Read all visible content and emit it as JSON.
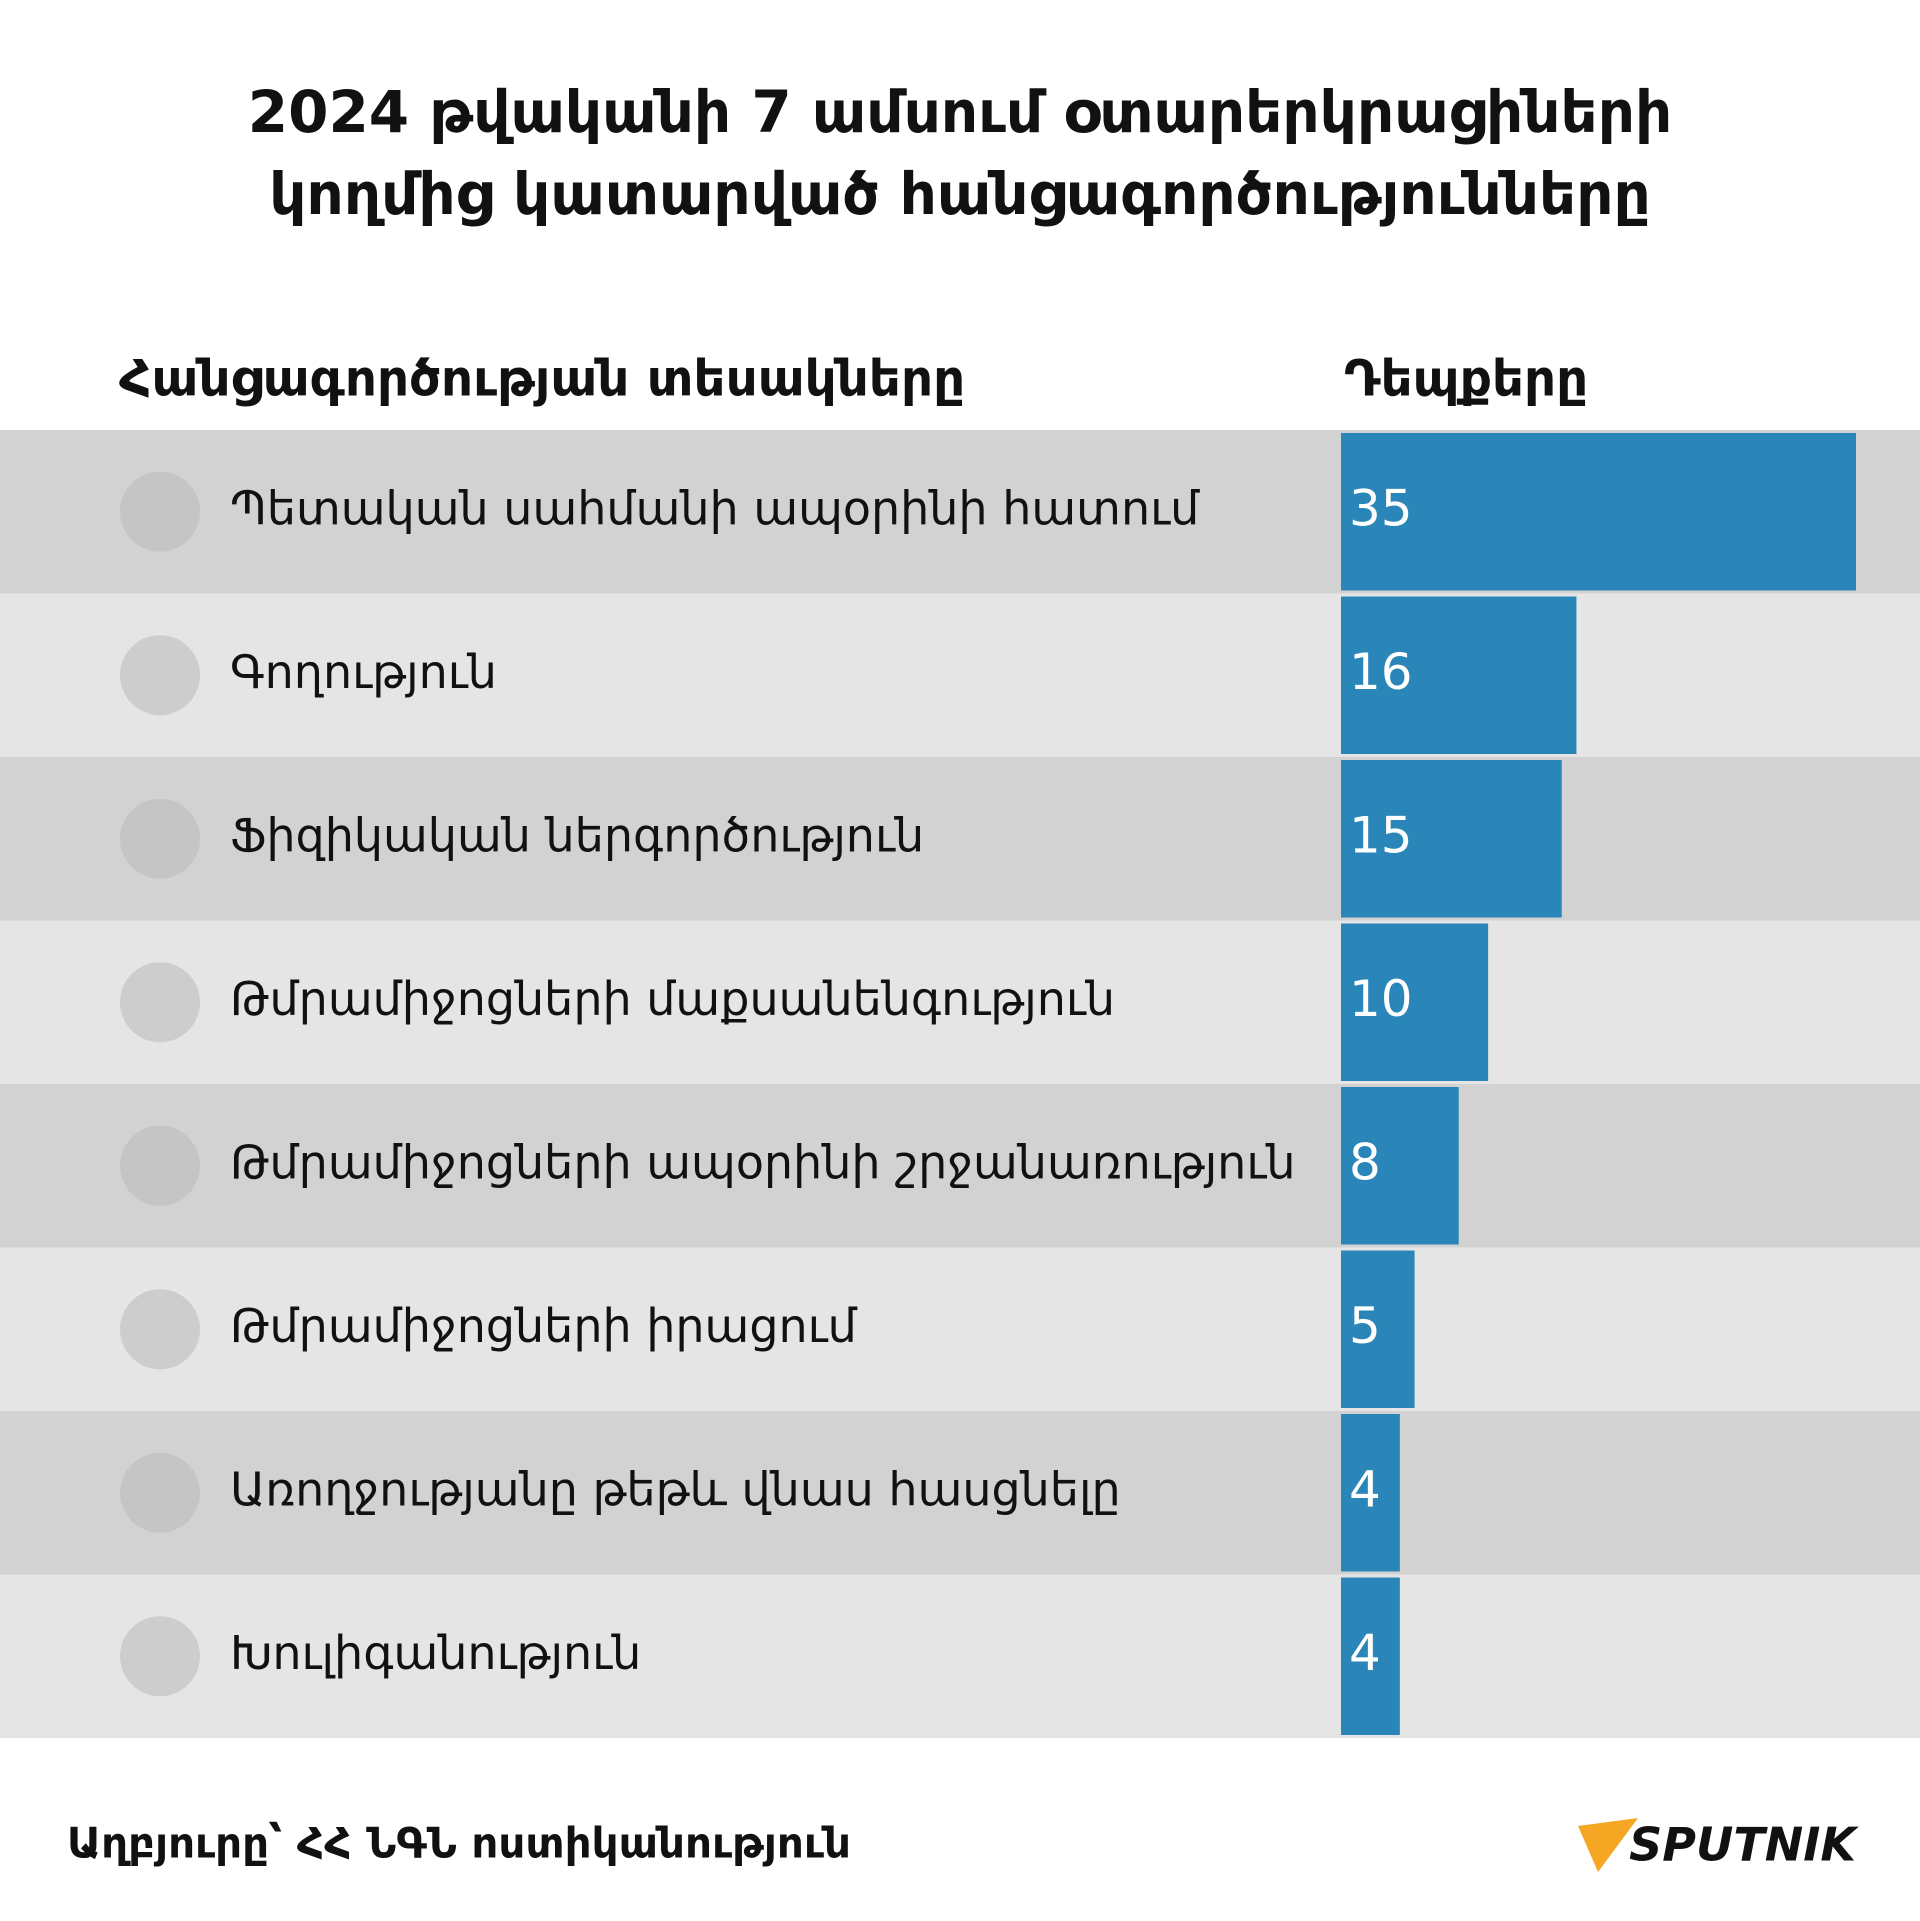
{
  "chart_data": {
    "type": "bar",
    "orientation": "horizontal",
    "title": [
      "2024 թվականի 7 ամսում օտարերկրացիների",
      "կողմից  կատարված հանցագործությունները"
    ],
    "category_header": "Հանցագործության տեսակները",
    "value_header": "Դեպքերը",
    "categories": [
      "Պետական սահմանի ապօրինի հատում",
      "Գողություն",
      "Ֆիզիկական ներգործություն",
      "Թմրամիջոցների մաքսանենգություն",
      "Թմրամիջոցների ապօրինի շրջանառություն",
      "Թմրամիջոցների իրացում",
      "Առողջությանը թեթև վնաս հասցնելը",
      "Խուլիգանություն"
    ],
    "values": [
      35,
      16,
      15,
      10,
      8,
      5,
      4,
      4
    ],
    "color": "#2a86b8",
    "source": "Աղբյուրը՝ ՀՀ ՆԳՆ ոստիկանություն",
    "logo": "SPUTNIK"
  }
}
